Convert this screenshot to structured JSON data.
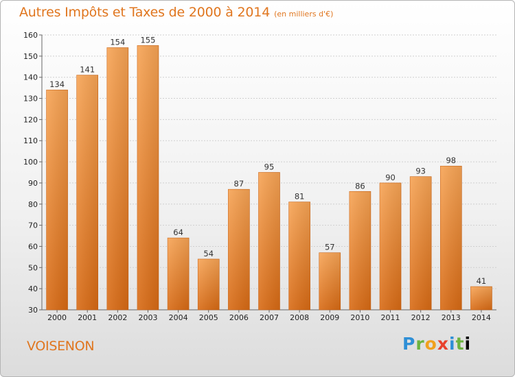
{
  "title": "Autres Impôts et Taxes de 2000 à 2014",
  "subtitle": "(en milliers d'€)",
  "commune": "VOISENON",
  "logo_text": "Proxiti",
  "colors": {
    "accent": "#e0761f",
    "bar_light": "#f7a455",
    "bar_dark": "#d86a14",
    "grid": "#cfcfcf"
  },
  "chart_data": {
    "type": "bar",
    "title": "Autres Impôts et Taxes de 2000 à 2014",
    "subtitle": "(en milliers d'€)",
    "categories": [
      "2000",
      "2001",
      "2002",
      "2003",
      "2004",
      "2005",
      "2006",
      "2007",
      "2008",
      "2009",
      "2010",
      "2011",
      "2012",
      "2013",
      "2014"
    ],
    "values": [
      134,
      141,
      154,
      155,
      64,
      54,
      87,
      95,
      81,
      57,
      86,
      90,
      93,
      98,
      41
    ],
    "ylim": [
      30,
      160
    ],
    "yticks": [
      30,
      40,
      50,
      60,
      70,
      80,
      90,
      100,
      110,
      120,
      130,
      140,
      150,
      160
    ],
    "grid": true,
    "xlabel": "",
    "ylabel": ""
  }
}
